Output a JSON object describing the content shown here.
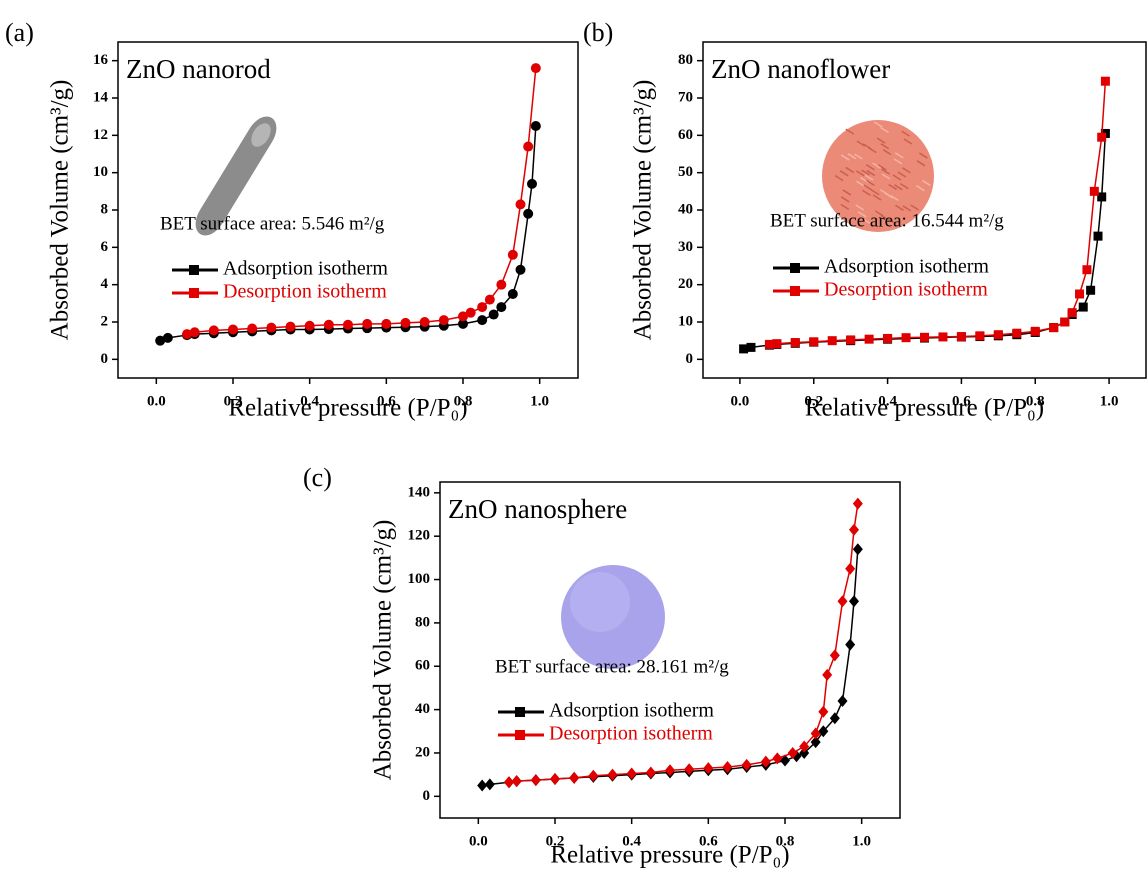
{
  "chart_data": [
    {
      "type": "line",
      "panel_label": "(a)",
      "title": "ZnO nanorod",
      "annotation": "BET surface area: 5.546 m²/g",
      "xlabel": "Relative pressure (P/P₀)",
      "ylabel": "Absorbed Volume (cm³/g)",
      "xlim": [
        -0.1,
        1.1
      ],
      "ylim": [
        -1,
        17
      ],
      "xticks": [
        {
          "value": 0,
          "label": "0.0"
        },
        0.2,
        0.4,
        0.6,
        0.8,
        {
          "value": 1,
          "label": "1.0"
        }
      ],
      "yticks": [
        0,
        2,
        4,
        6,
        8,
        10,
        12,
        14,
        16
      ],
      "series": [
        {
          "name": "Adsorption isotherm",
          "color": "#000000",
          "marker": "circle",
          "x": [
            0.01,
            0.03,
            0.08,
            0.1,
            0.15,
            0.2,
            0.25,
            0.3,
            0.35,
            0.4,
            0.45,
            0.5,
            0.55,
            0.6,
            0.65,
            0.7,
            0.75,
            0.8,
            0.85,
            0.88,
            0.9,
            0.93,
            0.95,
            0.97,
            0.98,
            0.99
          ],
          "values": [
            1.0,
            1.15,
            1.3,
            1.35,
            1.4,
            1.45,
            1.5,
            1.55,
            1.6,
            1.6,
            1.62,
            1.65,
            1.67,
            1.7,
            1.72,
            1.75,
            1.8,
            1.9,
            2.1,
            2.4,
            2.8,
            3.5,
            4.8,
            7.8,
            9.4,
            12.5
          ]
        },
        {
          "name": "Desorption isotherm",
          "color": "#e00000",
          "marker": "circle",
          "x": [
            0.99,
            0.97,
            0.95,
            0.93,
            0.9,
            0.87,
            0.85,
            0.82,
            0.8,
            0.75,
            0.7,
            0.65,
            0.6,
            0.55,
            0.5,
            0.45,
            0.4,
            0.35,
            0.3,
            0.25,
            0.2,
            0.15,
            0.1,
            0.08
          ],
          "values": [
            15.6,
            11.4,
            8.3,
            5.6,
            4.0,
            3.2,
            2.8,
            2.5,
            2.3,
            2.1,
            2.0,
            1.95,
            1.9,
            1.9,
            1.85,
            1.85,
            1.8,
            1.75,
            1.7,
            1.65,
            1.6,
            1.55,
            1.45,
            1.35
          ]
        }
      ]
    },
    {
      "type": "line",
      "panel_label": "(b)",
      "title": "ZnO nanoflower",
      "annotation": "BET surface area: 16.544 m²/g",
      "xlabel": "Relative pressure (P/P₀)",
      "ylabel": "Absorbed Volume (cm³/g)",
      "xlim": [
        -0.1,
        1.1
      ],
      "ylim": [
        -5,
        85
      ],
      "xticks": [
        {
          "value": 0,
          "label": "0.0"
        },
        0.2,
        0.4,
        0.6,
        0.8,
        {
          "value": 1,
          "label": "1.0"
        }
      ],
      "yticks": [
        0,
        10,
        20,
        30,
        40,
        50,
        60,
        70,
        80
      ],
      "series": [
        {
          "name": "Adsorption isotherm",
          "color": "#000000",
          "marker": "square",
          "x": [
            0.01,
            0.03,
            0.08,
            0.1,
            0.15,
            0.2,
            0.3,
            0.4,
            0.5,
            0.6,
            0.65,
            0.7,
            0.75,
            0.8,
            0.85,
            0.88,
            0.9,
            0.93,
            0.95,
            0.97,
            0.98,
            0.99
          ],
          "values": [
            2.8,
            3.2,
            3.8,
            4.0,
            4.3,
            4.6,
            5.0,
            5.4,
            5.7,
            6.0,
            6.1,
            6.3,
            6.6,
            7.2,
            8.5,
            10,
            12,
            14,
            18.5,
            33,
            43.5,
            60.5
          ]
        },
        {
          "name": "Desorption isotherm",
          "color": "#e00000",
          "marker": "square",
          "x": [
            0.99,
            0.98,
            0.96,
            0.94,
            0.92,
            0.9,
            0.88,
            0.85,
            0.8,
            0.75,
            0.7,
            0.65,
            0.6,
            0.55,
            0.5,
            0.45,
            0.4,
            0.35,
            0.3,
            0.25,
            0.2,
            0.15,
            0.1,
            0.08
          ],
          "values": [
            74.5,
            59.5,
            45,
            24,
            17.5,
            12.5,
            10,
            8.5,
            7.5,
            7,
            6.6,
            6.3,
            6.1,
            6.0,
            5.9,
            5.8,
            5.6,
            5.4,
            5.2,
            5.0,
            4.7,
            4.5,
            4.2,
            4.0
          ]
        }
      ]
    },
    {
      "type": "line",
      "panel_label": "(c)",
      "title": "ZnO nanosphere",
      "annotation": "BET surface area: 28.161 m²/g",
      "xlabel": "Relative pressure (P/P₀)",
      "ylabel": "Absorbed Volume (cm³/g)",
      "xlim": [
        -0.1,
        1.1
      ],
      "ylim": [
        -10,
        145
      ],
      "xticks": [
        {
          "value": 0,
          "label": "0.0"
        },
        0.2,
        0.4,
        0.6,
        0.8,
        {
          "value": 1,
          "label": "1.0"
        }
      ],
      "yticks": [
        0,
        20,
        40,
        60,
        80,
        100,
        120,
        140
      ],
      "series": [
        {
          "name": "Adsorption isotherm",
          "color": "#000000",
          "marker": "diamond",
          "x": [
            0.01,
            0.03,
            0.08,
            0.1,
            0.15,
            0.2,
            0.25,
            0.3,
            0.35,
            0.4,
            0.45,
            0.5,
            0.55,
            0.6,
            0.65,
            0.7,
            0.75,
            0.8,
            0.83,
            0.85,
            0.88,
            0.9,
            0.93,
            0.95,
            0.97,
            0.98,
            0.99
          ],
          "values": [
            5,
            5.5,
            6.5,
            7,
            7.5,
            8,
            8.5,
            9,
            9.5,
            10,
            10.5,
            11,
            11.5,
            12,
            12.5,
            13.5,
            14.5,
            16.5,
            18.5,
            20,
            25,
            30,
            36,
            44,
            70,
            90,
            114
          ]
        },
        {
          "name": "Desorption isotherm",
          "color": "#e00000",
          "marker": "diamond",
          "x": [
            0.99,
            0.98,
            0.97,
            0.95,
            0.93,
            0.91,
            0.9,
            0.88,
            0.85,
            0.82,
            0.78,
            0.75,
            0.7,
            0.65,
            0.6,
            0.55,
            0.5,
            0.45,
            0.4,
            0.35,
            0.3,
            0.25,
            0.2,
            0.15,
            0.1,
            0.08
          ],
          "values": [
            135,
            123,
            105,
            90,
            65,
            56,
            39,
            29,
            23,
            20,
            17.5,
            16,
            14.5,
            13.5,
            13,
            12.5,
            12,
            11,
            10.5,
            10,
            9.5,
            8.5,
            8,
            7.5,
            7,
            6.5
          ]
        }
      ]
    }
  ]
}
